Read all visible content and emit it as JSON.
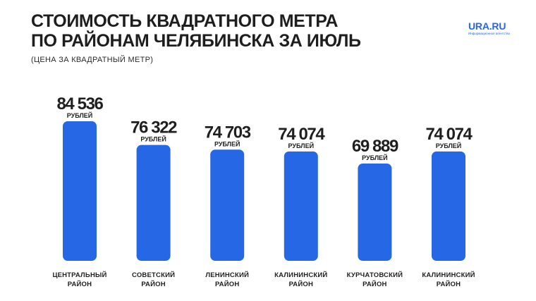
{
  "header": {
    "title_line1": "СТОИМОСТЬ КВАДРАТНОГО МЕТРА",
    "title_line2": "ПО РАЙОНАМ ЧЕЛЯБИНСКА ЗА ИЮЛЬ",
    "subtitle": "(ЦЕНА ЗА КВАДРАТНЫЙ МЕТР)"
  },
  "logo": {
    "name": "URA.RU",
    "tagline": "Информационное агентство"
  },
  "colors": {
    "bar": "#2667e6",
    "text": "#1f1f1f",
    "background": "#ffffff"
  },
  "chart_data": {
    "type": "bar",
    "title": "СТОИМОСТЬ КВАДРАТНОГО МЕТРА ПО РАЙОНАМ ЧЕЛЯБИНСКА ЗА ИЮЛЬ",
    "subtitle": "(ЦЕНА ЗА КВАДРАТНЫЙ МЕТР)",
    "categories": [
      [
        "ЦЕНТРАЛЬНЫЙ",
        "РАЙОН"
      ],
      [
        "СОВЕТСКИЙ",
        "РАЙОН"
      ],
      [
        "ЛЕНИНСКИЙ",
        "РАЙОН"
      ],
      [
        "КАЛИНИНСКИЙ",
        "РАЙОН"
      ],
      [
        "КУРЧАТОВСКИЙ",
        "РАЙОН"
      ],
      [
        "КАЛИНИНСКИЙ",
        "РАЙОН"
      ]
    ],
    "values": [
      84536,
      76322,
      74703,
      74074,
      69889,
      74074
    ],
    "value_labels": [
      "84 536",
      "76 322",
      "74 703",
      "74 074",
      "69 889",
      "74 074"
    ],
    "unit_label": "РУБЛЕЙ",
    "xlabel": "",
    "ylabel": "",
    "grid": false,
    "legend": "none"
  }
}
